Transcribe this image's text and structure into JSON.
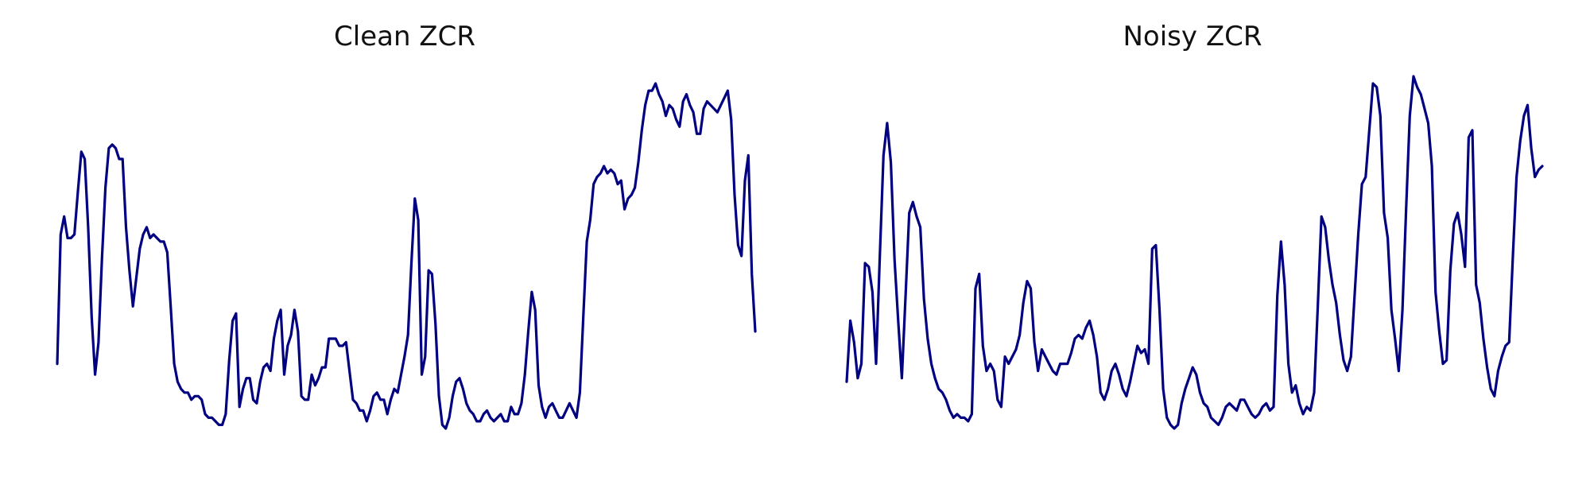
{
  "colors": {
    "line": "#000080",
    "background": "#ffffff"
  },
  "chart_data": [
    {
      "type": "line",
      "title": "Clean ZCR",
      "xlabel": "",
      "ylabel": "",
      "axes": "off",
      "grid": false,
      "xlim": [
        0,
        235
      ],
      "ylim": [
        0.0,
        1.0
      ],
      "series": [
        {
          "values": [
            0.2,
            0.56,
            0.61,
            0.55,
            0.55,
            0.56,
            0.68,
            0.79,
            0.77,
            0.58,
            0.33,
            0.17,
            0.26,
            0.49,
            0.69,
            0.8,
            0.81,
            0.8,
            0.77,
            0.77,
            0.58,
            0.46,
            0.36,
            0.44,
            0.52,
            0.56,
            0.58,
            0.55,
            0.56,
            0.55,
            0.54,
            0.54,
            0.51,
            0.36,
            0.2,
            0.15,
            0.13,
            0.12,
            0.12,
            0.1,
            0.11,
            0.11,
            0.1,
            0.06,
            0.05,
            0.05,
            0.04,
            0.03,
            0.03,
            0.06,
            0.21,
            0.32,
            0.34,
            0.08,
            0.13,
            0.16,
            0.16,
            0.1,
            0.09,
            0.15,
            0.19,
            0.2,
            0.18,
            0.27,
            0.32,
            0.35,
            0.17,
            0.25,
            0.28,
            0.35,
            0.29,
            0.11,
            0.1,
            0.1,
            0.17,
            0.14,
            0.16,
            0.19,
            0.19,
            0.27,
            0.27,
            0.27,
            0.25,
            0.25,
            0.26,
            0.18,
            0.1,
            0.09,
            0.07,
            0.07,
            0.04,
            0.07,
            0.11,
            0.12,
            0.1,
            0.1,
            0.06,
            0.1,
            0.13,
            0.12,
            0.17,
            0.22,
            0.28,
            0.48,
            0.66,
            0.6,
            0.17,
            0.22,
            0.46,
            0.45,
            0.31,
            0.11,
            0.03,
            0.02,
            0.05,
            0.11,
            0.15,
            0.16,
            0.13,
            0.09,
            0.07,
            0.06,
            0.04,
            0.04,
            0.06,
            0.07,
            0.05,
            0.04,
            0.05,
            0.06,
            0.04,
            0.04,
            0.08,
            0.06,
            0.06,
            0.09,
            0.17,
            0.29,
            0.4,
            0.35,
            0.14,
            0.08,
            0.05,
            0.08,
            0.09,
            0.07,
            0.05,
            0.05,
            0.07,
            0.09,
            0.07,
            0.05,
            0.12,
            0.33,
            0.54,
            0.6,
            0.7,
            0.72,
            0.73,
            0.75,
            0.73,
            0.74,
            0.73,
            0.7,
            0.71,
            0.63,
            0.66,
            0.67,
            0.69,
            0.76,
            0.85,
            0.92,
            0.96,
            0.96,
            0.98,
            0.95,
            0.93,
            0.89,
            0.92,
            0.91,
            0.88,
            0.86,
            0.93,
            0.95,
            0.92,
            0.9,
            0.84,
            0.84,
            0.91,
            0.93,
            0.92,
            0.91,
            0.9,
            0.92,
            0.94,
            0.96,
            0.88,
            0.67,
            0.53,
            0.5,
            0.71,
            0.78,
            0.45,
            0.29
          ]
        }
      ]
    },
    {
      "type": "line",
      "title": "Noisy ZCR",
      "xlabel": "",
      "ylabel": "",
      "axes": "off",
      "grid": false,
      "xlim": [
        0,
        235
      ],
      "ylim": [
        0.0,
        1.0
      ],
      "series": [
        {
          "values": [
            0.15,
            0.32,
            0.26,
            0.16,
            0.2,
            0.48,
            0.47,
            0.4,
            0.2,
            0.5,
            0.78,
            0.87,
            0.76,
            0.49,
            0.32,
            0.16,
            0.39,
            0.62,
            0.65,
            0.61,
            0.58,
            0.38,
            0.27,
            0.2,
            0.16,
            0.13,
            0.12,
            0.1,
            0.07,
            0.05,
            0.06,
            0.05,
            0.05,
            0.04,
            0.06,
            0.41,
            0.45,
            0.25,
            0.18,
            0.2,
            0.18,
            0.1,
            0.08,
            0.22,
            0.2,
            0.22,
            0.24,
            0.28,
            0.37,
            0.43,
            0.41,
            0.26,
            0.18,
            0.24,
            0.22,
            0.2,
            0.18,
            0.17,
            0.2,
            0.2,
            0.2,
            0.23,
            0.27,
            0.28,
            0.27,
            0.3,
            0.32,
            0.28,
            0.22,
            0.12,
            0.1,
            0.13,
            0.18,
            0.2,
            0.17,
            0.13,
            0.11,
            0.15,
            0.2,
            0.25,
            0.23,
            0.24,
            0.2,
            0.52,
            0.53,
            0.35,
            0.13,
            0.05,
            0.03,
            0.02,
            0.03,
            0.09,
            0.13,
            0.16,
            0.19,
            0.17,
            0.12,
            0.09,
            0.08,
            0.05,
            0.04,
            0.03,
            0.05,
            0.08,
            0.09,
            0.08,
            0.07,
            0.1,
            0.1,
            0.08,
            0.06,
            0.05,
            0.06,
            0.08,
            0.09,
            0.07,
            0.08,
            0.39,
            0.54,
            0.42,
            0.2,
            0.12,
            0.14,
            0.09,
            0.06,
            0.08,
            0.07,
            0.12,
            0.36,
            0.61,
            0.58,
            0.49,
            0.42,
            0.37,
            0.28,
            0.21,
            0.18,
            0.22,
            0.39,
            0.56,
            0.7,
            0.72,
            0.85,
            0.98,
            0.97,
            0.89,
            0.62,
            0.55,
            0.35,
            0.27,
            0.18,
            0.35,
            0.63,
            0.89,
            1.0,
            0.97,
            0.95,
            0.91,
            0.87,
            0.75,
            0.4,
            0.29,
            0.2,
            0.21,
            0.46,
            0.59,
            0.62,
            0.56,
            0.47,
            0.83,
            0.85,
            0.42,
            0.37,
            0.27,
            0.19,
            0.13,
            0.11,
            0.18,
            0.22,
            0.25,
            0.26,
            0.5,
            0.72,
            0.82,
            0.89,
            0.92,
            0.8,
            0.72,
            0.74,
            0.75
          ]
        }
      ]
    }
  ]
}
